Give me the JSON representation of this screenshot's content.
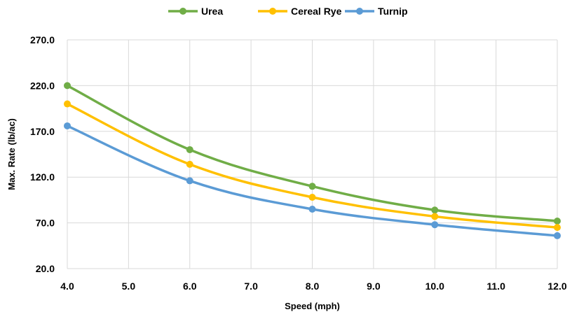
{
  "chart_data": {
    "type": "line",
    "x": [
      4.0,
      6.0,
      8.0,
      10.0,
      12.0
    ],
    "series": [
      {
        "name": "Urea",
        "color": "#70AD47",
        "values": [
          220.0,
          150.0,
          110.0,
          84.0,
          72.0
        ]
      },
      {
        "name": "Cereal Rye",
        "color": "#FFC000",
        "values": [
          200.0,
          134.0,
          98.0,
          77.0,
          65.0
        ]
      },
      {
        "name": "Turnip",
        "color": "#5B9BD5",
        "values": [
          176.0,
          116.0,
          85.0,
          68.0,
          56.0
        ]
      }
    ],
    "xlabel": "Speed (mph)",
    "ylabel": "Max. Rate (lb/ac)",
    "xlim": [
      4.0,
      12.0
    ],
    "ylim": [
      20.0,
      270.0
    ],
    "xticks": [
      "4.0",
      "5.0",
      "6.0",
      "7.0",
      "8.0",
      "9.0",
      "10.0",
      "11.0",
      "12.0"
    ],
    "yticks": [
      "20.0",
      "70.0",
      "120.0",
      "170.0",
      "220.0",
      "270.0"
    ],
    "grid": true,
    "legend_position": "top-center"
  }
}
